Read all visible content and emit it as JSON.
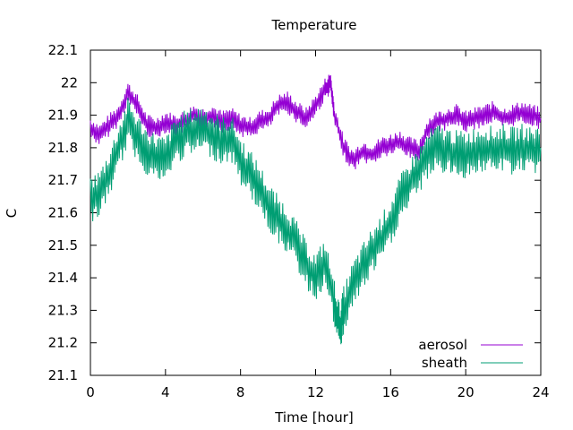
{
  "chart_data": {
    "type": "line",
    "title": "Temperature",
    "xlabel": "Time [hour]",
    "ylabel": "C",
    "xlim": [
      0,
      24
    ],
    "ylim": [
      21.1,
      22.1
    ],
    "x_ticks": [
      0,
      4,
      8,
      12,
      16,
      20,
      24
    ],
    "y_ticks": [
      "21.1",
      "21.2",
      "21.3",
      "21.4",
      "21.5",
      "21.6",
      "21.7",
      "21.8",
      "21.9",
      "22",
      "22.1"
    ],
    "grid": false,
    "legend_position": "bottom-right",
    "series": [
      {
        "name": "aerosol",
        "color": "#9400d3",
        "x": [
          0,
          0.5,
          1,
          1.5,
          2,
          2.5,
          3,
          3.5,
          4,
          4.5,
          5,
          5.5,
          6,
          6.5,
          7,
          7.5,
          8,
          8.5,
          9,
          9.5,
          10,
          10.5,
          11,
          11.5,
          12,
          12.5,
          12.8,
          13,
          13.5,
          14,
          14.5,
          15,
          15.5,
          16,
          16.5,
          17,
          17.5,
          18,
          18.5,
          19,
          19.5,
          20,
          20.5,
          21,
          21.5,
          22,
          22.5,
          23,
          23.5,
          24
        ],
        "y": [
          21.86,
          21.84,
          21.87,
          21.9,
          21.97,
          21.93,
          21.87,
          21.86,
          21.88,
          21.87,
          21.88,
          21.9,
          21.89,
          21.9,
          21.88,
          21.89,
          21.87,
          21.86,
          21.88,
          21.89,
          21.93,
          21.94,
          21.91,
          21.89,
          21.93,
          21.98,
          22.0,
          21.9,
          21.8,
          21.76,
          21.79,
          21.78,
          21.8,
          21.81,
          21.82,
          21.8,
          21.79,
          21.86,
          21.88,
          21.89,
          21.9,
          21.88,
          21.89,
          21.9,
          21.91,
          21.89,
          21.9,
          21.91,
          21.9,
          21.89
        ]
      },
      {
        "name": "sheath",
        "color": "#009e73",
        "x": [
          0,
          0.5,
          1,
          1.5,
          2,
          2.5,
          3,
          3.5,
          4,
          4.5,
          5,
          5.5,
          6,
          6.5,
          7,
          7.5,
          8,
          8.5,
          9,
          9.5,
          10,
          10.5,
          11,
          11.5,
          12,
          12.5,
          13,
          13.3,
          13.5,
          14,
          14.5,
          15,
          15.5,
          16,
          16.5,
          17,
          17.5,
          18,
          18.5,
          19,
          19.5,
          20,
          20.5,
          21,
          21.5,
          22,
          22.5,
          23,
          23.5,
          24
        ],
        "y": [
          21.64,
          21.66,
          21.72,
          21.8,
          21.88,
          21.83,
          21.79,
          21.77,
          21.76,
          21.82,
          21.84,
          21.85,
          21.86,
          21.84,
          21.82,
          21.83,
          21.76,
          21.72,
          21.68,
          21.62,
          21.58,
          21.55,
          21.5,
          21.44,
          21.4,
          21.45,
          21.32,
          21.24,
          21.3,
          21.38,
          21.43,
          21.48,
          21.52,
          21.57,
          21.64,
          21.69,
          21.73,
          21.78,
          21.8,
          21.79,
          21.78,
          21.78,
          21.79,
          21.8,
          21.79,
          21.8,
          21.79,
          21.8,
          21.79,
          21.8
        ]
      }
    ]
  }
}
